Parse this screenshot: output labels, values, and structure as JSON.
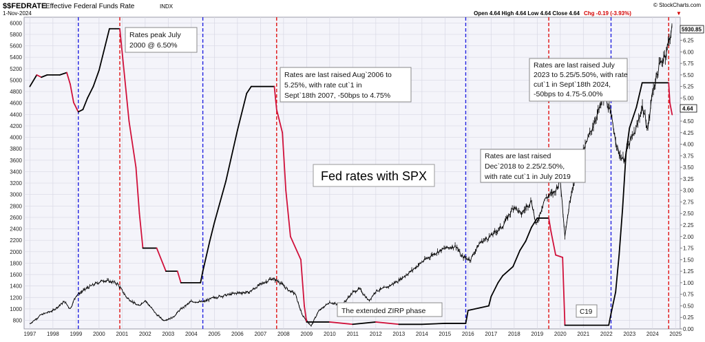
{
  "header": {
    "ticker": "$$FEDRATE",
    "name": "Effective Federal Funds Rate",
    "exchange": "INDX",
    "date": "1-Nov-2024",
    "source": "© StockCharts.com",
    "ohlc": "Open 4.64  High 4.64  Low 4.64  Close 4.64",
    "change": "Chg -0.19 (-3.93%)",
    "change_arrow": "▼"
  },
  "tags": {
    "spx_last": "5930.85",
    "rate_last": "4.64"
  },
  "colors": {
    "rate_up": "#000000",
    "rate_down": "#d0103a",
    "spx": "#000000",
    "red_marker": "#e01010",
    "blue_marker": "#2020e0",
    "grid": "#d8d8e4",
    "plot_bg": "#f4f4fa"
  },
  "annotations": [
    {
      "id": "peak2000",
      "lines": [
        "Rates peak July",
        "2000 @ 6.50%"
      ]
    },
    {
      "id": "raise2006",
      "lines": [
        "Rates are last raised Aug`2006 to",
        "5.25%, with rate cut`1 in",
        "Sept`18th 2007, -50bps to 4.75%"
      ]
    },
    {
      "id": "raise2018",
      "lines": [
        "Rates are last raised",
        "Dec`2018 to 2.25/2.50%,",
        "with rate cut`1 in July 2019"
      ]
    },
    {
      "id": "raise2023",
      "lines": [
        "Rates are last raised July",
        "2023 to 5.25/5.50%, with rate",
        "cut`1 in Sept`18th 2024,",
        "-50bps to 4.75-5.00%"
      ]
    },
    {
      "id": "zirp",
      "lines": [
        "The extended ZIRP phase"
      ]
    },
    {
      "id": "c19",
      "lines": [
        "C19"
      ]
    }
  ],
  "chart_data": {
    "type": "line",
    "title": "Fed rates with SPX",
    "xlabel": "",
    "ylabel": "",
    "x_ticks": [
      "1997",
      "1998",
      "1999",
      "2000",
      "2001",
      "2002",
      "2003",
      "2004",
      "2005",
      "2006",
      "2007",
      "2008",
      "2009",
      "2010",
      "2011",
      "2012",
      "2013",
      "2014",
      "2015",
      "2016",
      "2017",
      "2018",
      "2019",
      "2020",
      "2021",
      "2022",
      "2023",
      "2024",
      "2025"
    ],
    "left_axis": {
      "min": 650,
      "max": 6100,
      "ticks": [
        800,
        1000,
        1200,
        1400,
        1600,
        1800,
        2000,
        2200,
        2400,
        2600,
        2800,
        3000,
        3200,
        3400,
        3600,
        3800,
        4000,
        4200,
        4400,
        4600,
        4800,
        5000,
        5200,
        5400,
        5600,
        5800,
        6000
      ]
    },
    "right_axis": {
      "min": 0,
      "max": 6.75,
      "ticks": [
        "0.00",
        "0.25",
        "0.50",
        "0.75",
        "1.00",
        "1.25",
        "1.50",
        "1.75",
        "2.00",
        "2.25",
        "2.50",
        "2.75",
        "3.00",
        "3.25",
        "3.50",
        "3.75",
        "4.00",
        "4.25",
        "4.50",
        "4.75",
        "5.00",
        "5.25",
        "5.50",
        "5.75",
        "6.00",
        "6.25",
        "6.50"
      ]
    },
    "grid": true,
    "vertical_markers": [
      {
        "x": 1999.1,
        "color": "blue"
      },
      {
        "x": 2000.9,
        "color": "red"
      },
      {
        "x": 2004.5,
        "color": "blue"
      },
      {
        "x": 2007.7,
        "color": "red"
      },
      {
        "x": 2015.9,
        "color": "blue"
      },
      {
        "x": 2019.5,
        "color": "red"
      },
      {
        "x": 2022.2,
        "color": "blue"
      },
      {
        "x": 2024.7,
        "color": "red"
      }
    ],
    "series": [
      {
        "name": "Effective Federal Funds Rate",
        "axis": "right",
        "points": [
          [
            1997.0,
            5.25
          ],
          [
            1997.3,
            5.5
          ],
          [
            1997.5,
            5.45
          ],
          [
            1997.75,
            5.5
          ],
          [
            1998.0,
            5.5
          ],
          [
            1998.3,
            5.5
          ],
          [
            1998.6,
            5.55
          ],
          [
            1998.75,
            5.3
          ],
          [
            1998.9,
            4.9
          ],
          [
            1999.1,
            4.7
          ],
          [
            1999.3,
            4.75
          ],
          [
            1999.5,
            5.0
          ],
          [
            1999.75,
            5.25
          ],
          [
            2000.0,
            5.6
          ],
          [
            2000.2,
            6.0
          ],
          [
            2000.45,
            6.5
          ],
          [
            2000.7,
            6.5
          ],
          [
            2000.9,
            6.5
          ],
          [
            2001.0,
            6.0
          ],
          [
            2001.3,
            4.5
          ],
          [
            2001.6,
            3.5
          ],
          [
            2001.75,
            2.5
          ],
          [
            2001.9,
            1.75
          ],
          [
            2002.5,
            1.75
          ],
          [
            2002.9,
            1.25
          ],
          [
            2003.4,
            1.25
          ],
          [
            2003.55,
            1.0
          ],
          [
            2004.4,
            1.0
          ],
          [
            2004.5,
            1.25
          ],
          [
            2004.8,
            1.9
          ],
          [
            2005.0,
            2.3
          ],
          [
            2005.5,
            3.2
          ],
          [
            2006.0,
            4.3
          ],
          [
            2006.4,
            5.1
          ],
          [
            2006.6,
            5.25
          ],
          [
            2007.6,
            5.25
          ],
          [
            2007.7,
            4.75
          ],
          [
            2007.95,
            4.25
          ],
          [
            2008.1,
            3.0
          ],
          [
            2008.3,
            2.0
          ],
          [
            2008.75,
            1.5
          ],
          [
            2008.9,
            0.5
          ],
          [
            2009.0,
            0.15
          ],
          [
            2010.0,
            0.15
          ],
          [
            2011.0,
            0.1
          ],
          [
            2012.0,
            0.15
          ],
          [
            2013.0,
            0.1
          ],
          [
            2014.0,
            0.1
          ],
          [
            2015.0,
            0.12
          ],
          [
            2015.9,
            0.12
          ],
          [
            2016.0,
            0.4
          ],
          [
            2016.9,
            0.5
          ],
          [
            2017.0,
            0.7
          ],
          [
            2017.3,
            1.0
          ],
          [
            2017.5,
            1.15
          ],
          [
            2017.95,
            1.35
          ],
          [
            2018.25,
            1.7
          ],
          [
            2018.5,
            1.9
          ],
          [
            2018.75,
            2.2
          ],
          [
            2019.0,
            2.4
          ],
          [
            2019.5,
            2.4
          ],
          [
            2019.6,
            2.1
          ],
          [
            2019.8,
            1.6
          ],
          [
            2020.1,
            1.55
          ],
          [
            2020.2,
            0.08
          ],
          [
            2021.0,
            0.08
          ],
          [
            2022.1,
            0.08
          ],
          [
            2022.2,
            0.33
          ],
          [
            2022.4,
            0.8
          ],
          [
            2022.55,
            1.6
          ],
          [
            2022.7,
            2.6
          ],
          [
            2022.85,
            3.8
          ],
          [
            2023.0,
            4.35
          ],
          [
            2023.3,
            4.8
          ],
          [
            2023.55,
            5.33
          ],
          [
            2024.7,
            5.33
          ],
          [
            2024.75,
            4.9
          ],
          [
            2024.85,
            4.64
          ]
        ]
      },
      {
        "name": "S&P 500",
        "axis": "left",
        "points": [
          [
            1997.0,
            740
          ],
          [
            1997.5,
            900
          ],
          [
            1998.0,
            970
          ],
          [
            1998.5,
            1130
          ],
          [
            1998.75,
            1000
          ],
          [
            1999.0,
            1230
          ],
          [
            1999.5,
            1370
          ],
          [
            1999.9,
            1450
          ],
          [
            2000.2,
            1500
          ],
          [
            2000.6,
            1470
          ],
          [
            2000.8,
            1440
          ],
          [
            2001.2,
            1200
          ],
          [
            2001.7,
            1050
          ],
          [
            2002.0,
            1150
          ],
          [
            2002.5,
            900
          ],
          [
            2002.8,
            800
          ],
          [
            2003.2,
            850
          ],
          [
            2003.5,
            980
          ],
          [
            2004.0,
            1130
          ],
          [
            2004.5,
            1120
          ],
          [
            2005.0,
            1200
          ],
          [
            2006.0,
            1280
          ],
          [
            2006.5,
            1290
          ],
          [
            2007.0,
            1430
          ],
          [
            2007.5,
            1530
          ],
          [
            2007.8,
            1480
          ],
          [
            2008.2,
            1330
          ],
          [
            2008.5,
            1270
          ],
          [
            2008.8,
            900
          ],
          [
            2009.2,
            700
          ],
          [
            2009.5,
            950
          ],
          [
            2010.0,
            1120
          ],
          [
            2010.5,
            1050
          ],
          [
            2011.0,
            1290
          ],
          [
            2011.3,
            1350
          ],
          [
            2011.7,
            1140
          ],
          [
            2012.0,
            1310
          ],
          [
            2012.5,
            1380
          ],
          [
            2013.0,
            1500
          ],
          [
            2013.5,
            1650
          ],
          [
            2014.0,
            1820
          ],
          [
            2014.5,
            1960
          ],
          [
            2015.0,
            2060
          ],
          [
            2015.5,
            2100
          ],
          [
            2015.7,
            1920
          ],
          [
            2016.1,
            1860
          ],
          [
            2016.5,
            2150
          ],
          [
            2017.0,
            2280
          ],
          [
            2017.5,
            2450
          ],
          [
            2018.0,
            2800
          ],
          [
            2018.3,
            2650
          ],
          [
            2018.75,
            2900
          ],
          [
            2018.95,
            2450
          ],
          [
            2019.3,
            2900
          ],
          [
            2019.5,
            2980
          ],
          [
            2019.75,
            3040
          ],
          [
            2020.0,
            3250
          ],
          [
            2020.2,
            2300
          ],
          [
            2020.5,
            3100
          ],
          [
            2020.75,
            3400
          ],
          [
            2021.0,
            3750
          ],
          [
            2021.5,
            4300
          ],
          [
            2021.95,
            4750
          ],
          [
            2022.3,
            4200
          ],
          [
            2022.5,
            3750
          ],
          [
            2022.75,
            3600
          ],
          [
            2023.0,
            3900
          ],
          [
            2023.3,
            4150
          ],
          [
            2023.55,
            4550
          ],
          [
            2023.8,
            4150
          ],
          [
            2024.0,
            4800
          ],
          [
            2024.3,
            5250
          ],
          [
            2024.6,
            5500
          ],
          [
            2024.75,
            5760
          ],
          [
            2024.85,
            5930
          ]
        ]
      }
    ]
  }
}
